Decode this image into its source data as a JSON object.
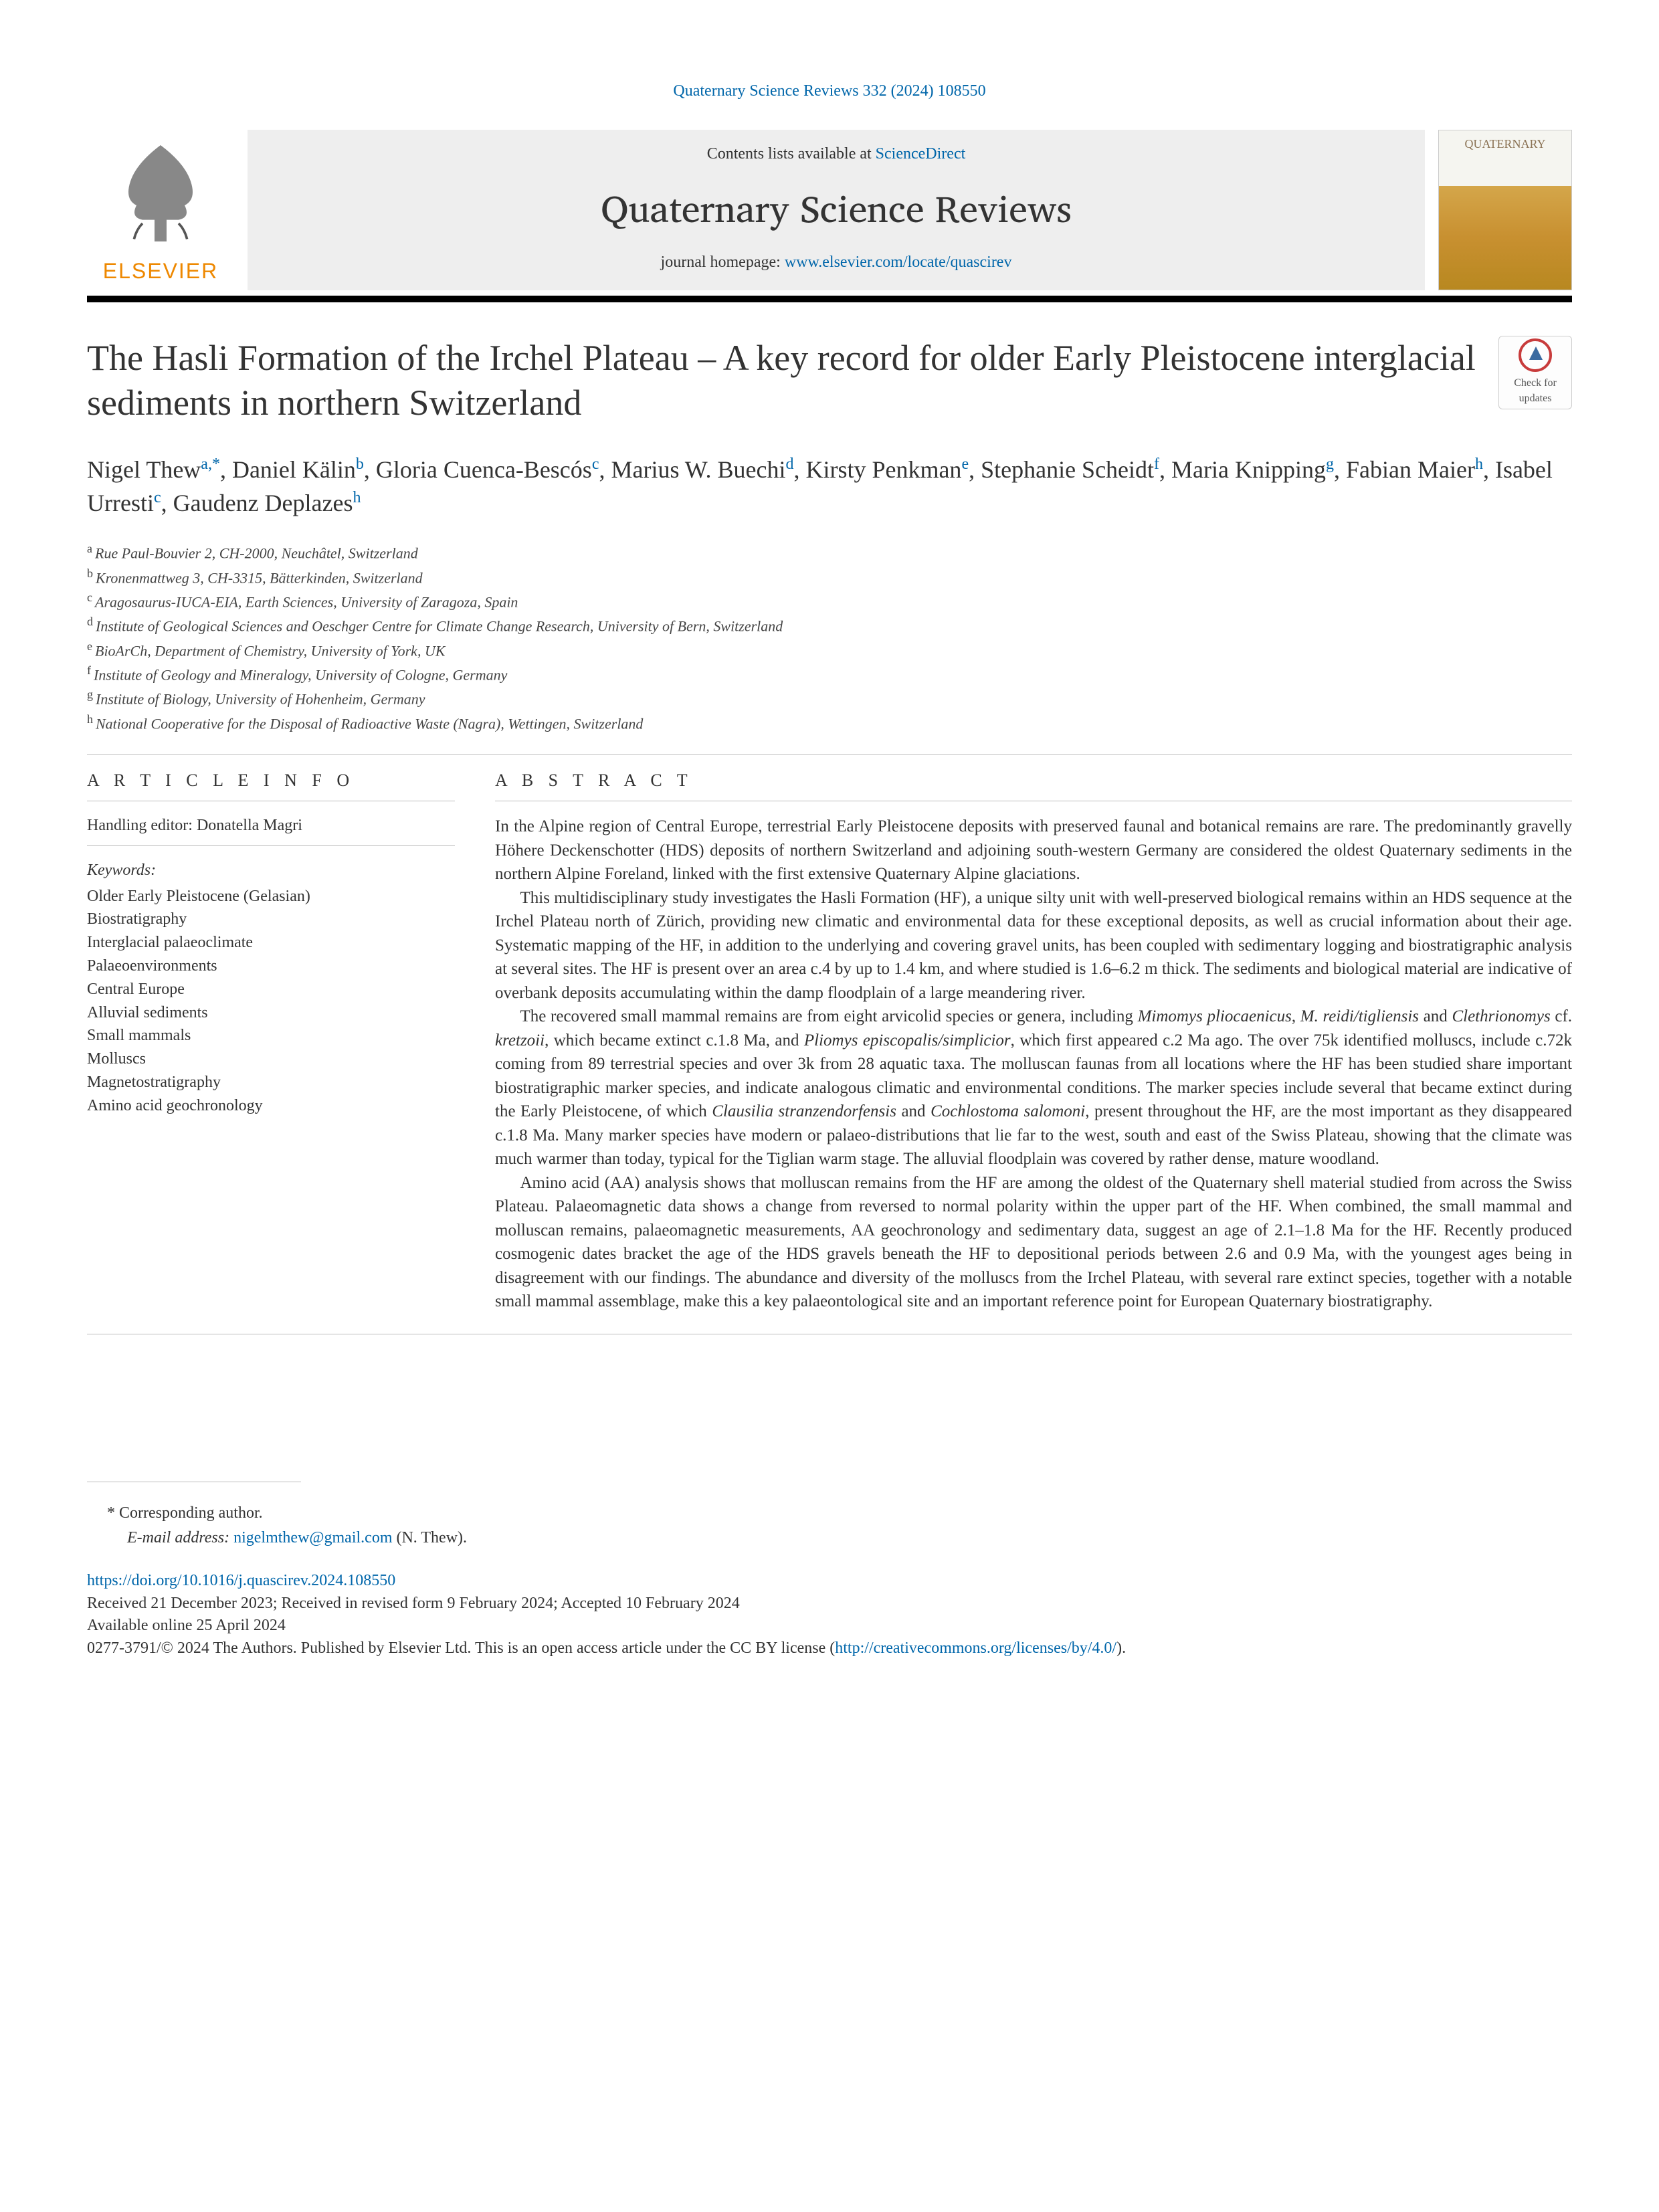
{
  "citation": "Quaternary Science Reviews 332 (2024) 108550",
  "header": {
    "contents_prefix": "Contents lists available at ",
    "contents_link": "ScienceDirect",
    "journal_name": "Quaternary Science Reviews",
    "homepage_prefix": "journal homepage: ",
    "homepage_link": "www.elsevier.com/locate/quascirev",
    "publisher": "ELSEVIER",
    "cover_label": "QUATERNARY"
  },
  "check_updates_label": "Check for updates",
  "title": "The Hasli Formation of the Irchel Plateau – A key record for older Early Pleistocene interglacial sediments in northern Switzerland",
  "authors_html": "Nigel Thew<sup class='sup'>a,*</sup>, Daniel Kälin<sup class='sup'>b</sup>, Gloria Cuenca-Bescós<sup class='sup'>c</sup>, Marius W. Buechi<sup class='sup'>d</sup>, Kirsty Penkman<sup class='sup'>e</sup>, Stephanie Scheidt<sup class='sup'>f</sup>, Maria Knipping<sup class='sup'>g</sup>, Fabian Maier<sup class='sup'>h</sup>, Isabel Urresti<sup class='sup'>c</sup>, Gaudenz Deplazes<sup class='sup'>h</sup>",
  "affiliations": [
    {
      "sup": "a",
      "text": "Rue Paul-Bouvier 2, CH-2000, Neuchâtel, Switzerland"
    },
    {
      "sup": "b",
      "text": "Kronenmattweg 3, CH-3315, Bätterkinden, Switzerland"
    },
    {
      "sup": "c",
      "text": "Aragosaurus-IUCA-EIA, Earth Sciences, University of Zaragoza, Spain"
    },
    {
      "sup": "d",
      "text": "Institute of Geological Sciences and Oeschger Centre for Climate Change Research, University of Bern, Switzerland"
    },
    {
      "sup": "e",
      "text": "BioArCh, Department of Chemistry, University of York, UK"
    },
    {
      "sup": "f",
      "text": "Institute of Geology and Mineralogy, University of Cologne, Germany"
    },
    {
      "sup": "g",
      "text": "Institute of Biology, University of Hohenheim, Germany"
    },
    {
      "sup": "h",
      "text": "National Cooperative for the Disposal of Radioactive Waste (Nagra), Wettingen, Switzerland"
    }
  ],
  "article_info": {
    "heading": "A R T I C L E  I N F O",
    "handling_editor_label": "Handling editor: ",
    "handling_editor": "Donatella Magri",
    "keywords_label": "Keywords:",
    "keywords": [
      "Older Early Pleistocene (Gelasian)",
      "Biostratigraphy",
      "Interglacial palaeoclimate",
      "Palaeoenvironments",
      "Central Europe",
      "Alluvial sediments",
      "Small mammals",
      "Molluscs",
      "Magnetostratigraphy",
      "Amino acid geochronology"
    ]
  },
  "abstract": {
    "heading": "A B S T R A C T",
    "paragraphs": [
      "In the Alpine region of Central Europe, terrestrial Early Pleistocene deposits with preserved faunal and botanical remains are rare. The predominantly gravelly Höhere Deckenschotter (HDS) deposits of northern Switzerland and adjoining south-western Germany are considered the oldest Quaternary sediments in the northern Alpine Foreland, linked with the first extensive Quaternary Alpine glaciations.",
      "This multidisciplinary study investigates the Hasli Formation (HF), a unique silty unit with well-preserved biological remains within an HDS sequence at the Irchel Plateau north of Zürich, providing new climatic and environmental data for these exceptional deposits, as well as crucial information about their age. Systematic mapping of the HF, in addition to the underlying and covering gravel units, has been coupled with sedimentary logging and biostratigraphic analysis at several sites. The HF is present over an area c.4 by up to 1.4 km, and where studied is 1.6–6.2 m thick. The sediments and biological material are indicative of overbank deposits accumulating within the damp floodplain of a large meandering river.",
      "The recovered small mammal remains are from eight arvicolid species or genera, including <i>Mimomys pliocaenicus</i>, <i>M. reidi/tigliensis</i> and <i>Clethrionomys</i> cf. <i>kretzoii</i>, which became extinct c.1.8 Ma, and <i>Pliomys episcopalis/simplicior</i>, which first appeared c.2 Ma ago. The over 75k identified molluscs, include c.72k coming from 89 terrestrial species and over 3k from 28 aquatic taxa. The molluscan faunas from all locations where the HF has been studied share important biostratigraphic marker species, and indicate analogous climatic and environmental conditions. The marker species include several that became extinct during the Early Pleistocene, of which <i>Clausilia stranzendorfensis</i> and <i>Cochlostoma salomoni</i>, present throughout the HF, are the most important as they disappeared c.1.8 Ma. Many marker species have modern or palaeo-distributions that lie far to the west, south and east of the Swiss Plateau, showing that the climate was much warmer than today, typical for the Tiglian warm stage. The alluvial floodplain was covered by rather dense, mature woodland.",
      "Amino acid (AA) analysis shows that molluscan remains from the HF are among the oldest of the Quaternary shell material studied from across the Swiss Plateau. Palaeomagnetic data shows a change from reversed to normal polarity within the upper part of the HF. When combined, the small mammal and molluscan remains, palaeomagnetic measurements, AA geochronology and sedimentary data, suggest an age of 2.1–1.8 Ma for the HF. Recently produced cosmogenic dates bracket the age of the HDS gravels beneath the HF to depositional periods between 2.6 and 0.9 Ma, with the youngest ages being in disagreement with our findings. The abundance and diversity of the molluscs from the Irchel Plateau, with several rare extinct species, together with a notable small mammal assemblage, make this a key palaeontological site and an important reference point for European Quaternary biostratigraphy."
    ]
  },
  "footer": {
    "corr_label": "* Corresponding author.",
    "email_label": "E-mail address: ",
    "email": "nigelmthew@gmail.com",
    "email_suffix": " (N. Thew).",
    "doi": "https://doi.org/10.1016/j.quascirev.2024.108550",
    "dates": "Received 21 December 2023; Received in revised form 9 February 2024; Accepted 10 February 2024",
    "available": "Available online 25 April 2024",
    "copyright_prefix": "0277-3791/© 2024 The Authors. Published by Elsevier Ltd. This is an open access article under the CC BY license (",
    "copyright_link": "http://creativecommons.org/licenses/by/4.0/",
    "copyright_suffix": ")."
  },
  "colors": {
    "link": "#0066aa",
    "elsevier_orange": "#ee8800",
    "rule": "#bbbbbb",
    "header_bg": "#eeeeee"
  }
}
